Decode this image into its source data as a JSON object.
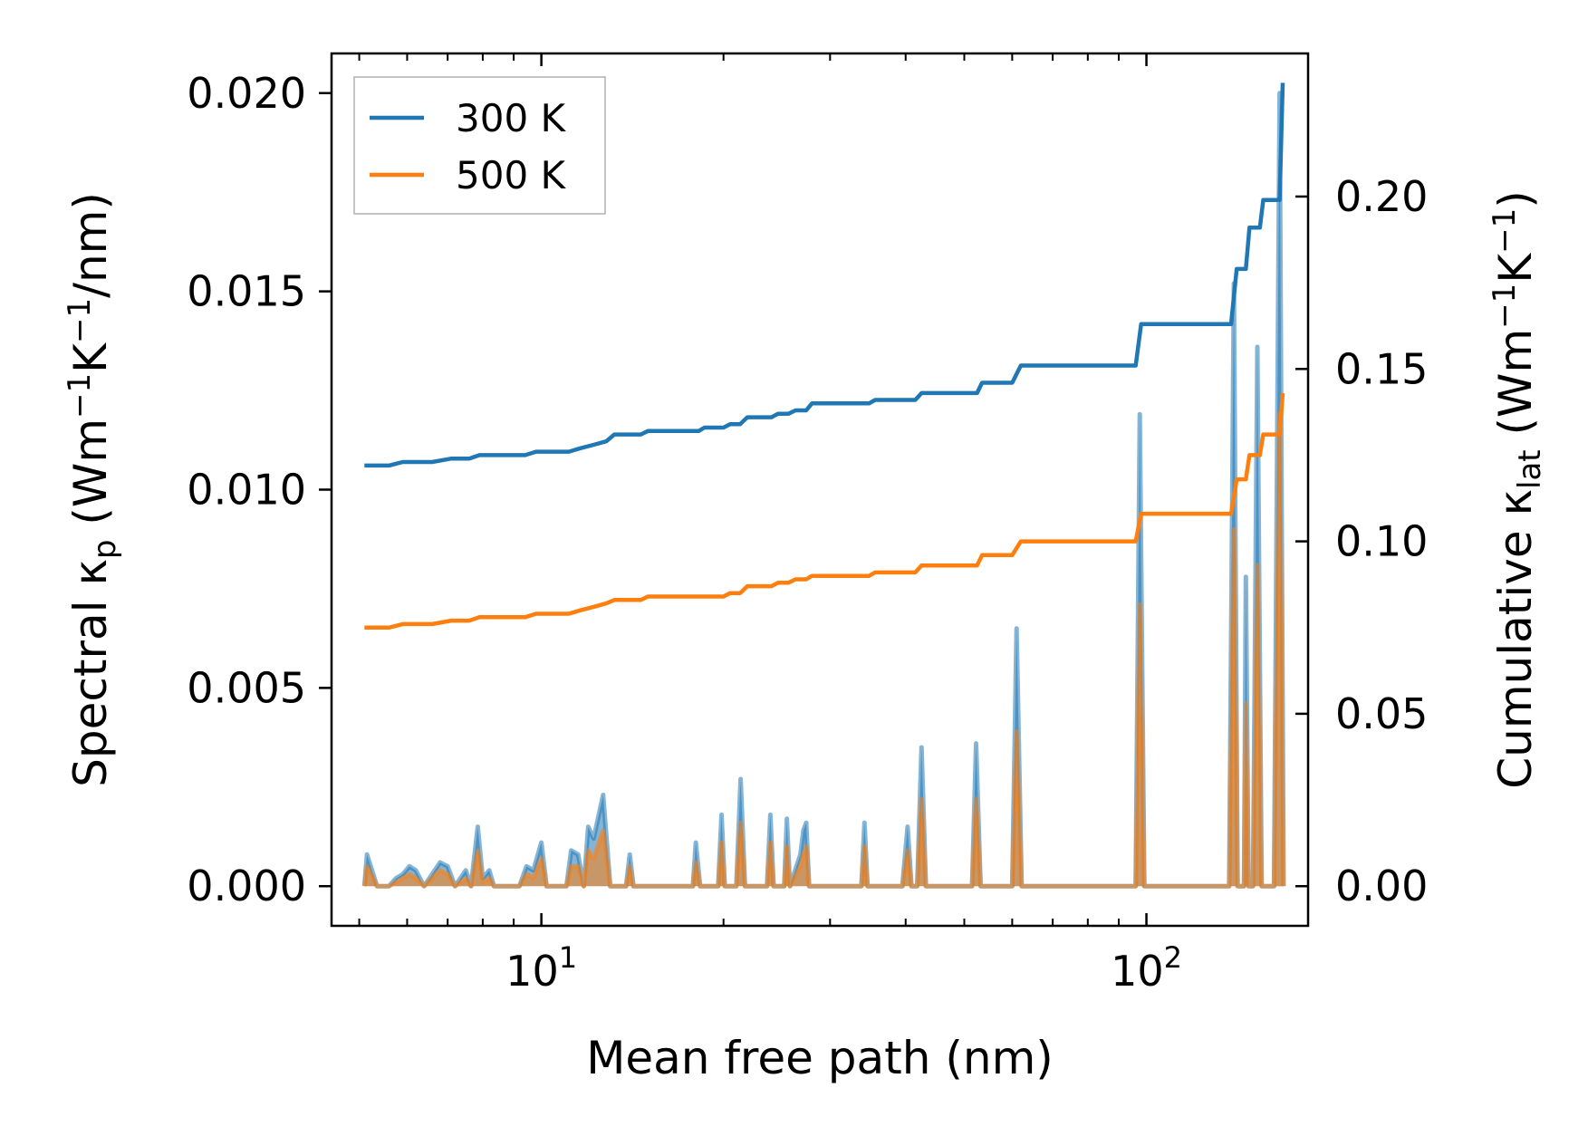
{
  "chart_data": {
    "type": "line",
    "xscale": "log",
    "xlim": [
      4.5,
      185
    ],
    "ylim_left": [
      -0.001,
      0.021
    ],
    "ylim_right": [
      -0.0115,
      0.2415
    ],
    "xlabel": "Mean free path (nm)",
    "ylabel_left": {
      "pre": "Spectral κ",
      "sub": "p",
      "open": " (Wm",
      "sup1": "−1",
      "mid": "K",
      "sup2": "−1",
      "close": "/nm)"
    },
    "ylabel_right": {
      "pre": "Cumulative κ",
      "sub": "lat",
      "open": " (Wm",
      "sup1": "−1",
      "mid": "K",
      "sup2": "−1",
      "close": ")"
    },
    "x_ticks": [
      {
        "base": "10",
        "exp": "1"
      },
      {
        "base": "10",
        "exp": "2"
      }
    ],
    "y_ticks_left": [
      "0.000",
      "0.005",
      "0.010",
      "0.015",
      "0.020"
    ],
    "y_ticks_right": [
      "0.00",
      "0.05",
      "0.10",
      "0.15",
      "0.20"
    ],
    "legend": {
      "position": "top-left",
      "entries": [
        "300 K",
        "500 K"
      ]
    },
    "colors": {
      "300 K": "#1f77b4",
      "500 K": "#ff7f0e"
    },
    "cumulative_series": [
      {
        "name": "300 K",
        "axis": "right",
        "points": [
          [
            5.1,
            0.122
          ],
          [
            5.6,
            0.122
          ],
          [
            5.9,
            0.123
          ],
          [
            6.6,
            0.123
          ],
          [
            7.1,
            0.124
          ],
          [
            7.6,
            0.124
          ],
          [
            7.9,
            0.125
          ],
          [
            9.4,
            0.125
          ],
          [
            9.8,
            0.126
          ],
          [
            11.1,
            0.126
          ],
          [
            11.6,
            0.127
          ],
          [
            12.2,
            0.128
          ],
          [
            12.8,
            0.129
          ],
          [
            13.2,
            0.131
          ],
          [
            14.6,
            0.131
          ],
          [
            15.0,
            0.132
          ],
          [
            18.2,
            0.132
          ],
          [
            18.6,
            0.133
          ],
          [
            20.0,
            0.133
          ],
          [
            20.5,
            0.134
          ],
          [
            21.3,
            0.134
          ],
          [
            21.9,
            0.136
          ],
          [
            24.0,
            0.136
          ],
          [
            24.6,
            0.137
          ],
          [
            25.6,
            0.137
          ],
          [
            26.3,
            0.138
          ],
          [
            27.4,
            0.138
          ],
          [
            28.0,
            0.14
          ],
          [
            34.8,
            0.14
          ],
          [
            35.6,
            0.141
          ],
          [
            41.5,
            0.141
          ],
          [
            42.5,
            0.143
          ],
          [
            48.5,
            0.143
          ],
          [
            52.5,
            0.143
          ],
          [
            53.5,
            0.146
          ],
          [
            60.0,
            0.146
          ],
          [
            62.0,
            0.151
          ],
          [
            96.0,
            0.151
          ],
          [
            98.0,
            0.163
          ],
          [
            138.0,
            0.163
          ],
          [
            141.0,
            0.179
          ],
          [
            146.0,
            0.179
          ],
          [
            148.0,
            0.191
          ],
          [
            154.0,
            0.191
          ],
          [
            156.0,
            0.199
          ],
          [
            166.0,
            0.199
          ],
          [
            168.0,
            0.233
          ]
        ]
      },
      {
        "name": "500 K",
        "axis": "right",
        "points": [
          [
            5.1,
            0.075
          ],
          [
            5.6,
            0.075
          ],
          [
            5.9,
            0.076
          ],
          [
            6.6,
            0.076
          ],
          [
            7.1,
            0.077
          ],
          [
            7.6,
            0.077
          ],
          [
            7.9,
            0.078
          ],
          [
            9.4,
            0.078
          ],
          [
            9.8,
            0.079
          ],
          [
            11.1,
            0.079
          ],
          [
            11.6,
            0.08
          ],
          [
            12.2,
            0.081
          ],
          [
            12.8,
            0.082
          ],
          [
            13.2,
            0.083
          ],
          [
            14.6,
            0.083
          ],
          [
            15.0,
            0.084
          ],
          [
            18.2,
            0.084
          ],
          [
            18.6,
            0.084
          ],
          [
            20.0,
            0.084
          ],
          [
            20.5,
            0.085
          ],
          [
            21.3,
            0.085
          ],
          [
            21.9,
            0.087
          ],
          [
            24.0,
            0.087
          ],
          [
            24.6,
            0.088
          ],
          [
            25.6,
            0.088
          ],
          [
            26.3,
            0.089
          ],
          [
            27.4,
            0.089
          ],
          [
            28.0,
            0.09
          ],
          [
            34.8,
            0.09
          ],
          [
            35.6,
            0.091
          ],
          [
            41.5,
            0.091
          ],
          [
            42.5,
            0.093
          ],
          [
            48.5,
            0.093
          ],
          [
            52.5,
            0.093
          ],
          [
            53.5,
            0.096
          ],
          [
            60.0,
            0.096
          ],
          [
            62.0,
            0.1
          ],
          [
            96.0,
            0.1
          ],
          [
            98.0,
            0.108
          ],
          [
            138.0,
            0.108
          ],
          [
            141.0,
            0.118
          ],
          [
            146.0,
            0.118
          ],
          [
            148.0,
            0.125
          ],
          [
            154.0,
            0.125
          ],
          [
            156.0,
            0.131
          ],
          [
            166.0,
            0.131
          ],
          [
            168.0,
            0.143
          ]
        ]
      }
    ],
    "spectral_series": [
      {
        "name": "300 K",
        "axis": "left",
        "points": [
          [
            5.1,
            0.0
          ],
          [
            5.15,
            0.0008
          ],
          [
            5.35,
            0.0
          ],
          [
            5.6,
            0.0
          ],
          [
            5.75,
            0.0002
          ],
          [
            5.9,
            0.0003
          ],
          [
            6.05,
            0.0005
          ],
          [
            6.2,
            0.0004
          ],
          [
            6.4,
            0.0
          ],
          [
            6.8,
            0.0006
          ],
          [
            7.0,
            0.0005
          ],
          [
            7.2,
            0.0
          ],
          [
            7.5,
            0.0004
          ],
          [
            7.65,
            0.0
          ],
          [
            7.85,
            0.0015
          ],
          [
            8.0,
            0.0002
          ],
          [
            8.2,
            0.0004
          ],
          [
            8.35,
            0.0
          ],
          [
            9.2,
            0.0
          ],
          [
            9.45,
            0.0005
          ],
          [
            9.7,
            0.0004
          ],
          [
            10.0,
            0.0011
          ],
          [
            10.2,
            0.0
          ],
          [
            11.0,
            0.0
          ],
          [
            11.2,
            0.0009
          ],
          [
            11.5,
            0.0008
          ],
          [
            11.75,
            0.0
          ],
          [
            11.95,
            0.0015
          ],
          [
            12.2,
            0.0012
          ],
          [
            12.65,
            0.0023
          ],
          [
            13.0,
            0.0
          ],
          [
            13.8,
            0.0
          ],
          [
            14.0,
            0.0008
          ],
          [
            14.2,
            0.0
          ],
          [
            17.8,
            0.0
          ],
          [
            18.0,
            0.0011
          ],
          [
            18.3,
            0.0
          ],
          [
            19.6,
            0.0
          ],
          [
            19.85,
            0.0018
          ],
          [
            20.1,
            0.0
          ],
          [
            21.0,
            0.0
          ],
          [
            21.35,
            0.0027
          ],
          [
            21.7,
            0.0
          ],
          [
            23.6,
            0.0
          ],
          [
            23.9,
            0.0018
          ],
          [
            24.2,
            0.0
          ],
          [
            25.2,
            0.0
          ],
          [
            25.45,
            0.0017
          ],
          [
            25.75,
            0.0
          ],
          [
            26.8,
            0.0008
          ],
          [
            27.1,
            0.0014
          ],
          [
            27.4,
            0.0016
          ],
          [
            27.7,
            0.0
          ],
          [
            33.8,
            0.0
          ],
          [
            34.2,
            0.0016
          ],
          [
            34.6,
            0.0
          ],
          [
            39.5,
            0.0
          ],
          [
            40.3,
            0.0015
          ],
          [
            40.9,
            0.0
          ],
          [
            41.8,
            0.0
          ],
          [
            42.5,
            0.0035
          ],
          [
            43.2,
            0.0
          ],
          [
            51.5,
            0.0
          ],
          [
            52.3,
            0.0036
          ],
          [
            53.2,
            0.0
          ],
          [
            60.0,
            0.0
          ],
          [
            61.0,
            0.0065
          ],
          [
            62.2,
            0.0
          ],
          [
            96.0,
            0.0
          ],
          [
            97.5,
            0.0119
          ],
          [
            99.2,
            0.0
          ],
          [
            137.0,
            0.0
          ],
          [
            139.5,
            0.0152
          ],
          [
            141.5,
            0.0
          ],
          [
            145.0,
            0.0
          ],
          [
            146.0,
            0.0078
          ],
          [
            147.5,
            0.0
          ],
          [
            150.0,
            0.0
          ],
          [
            152.5,
            0.0136
          ],
          [
            155.0,
            0.0
          ],
          [
            162.5,
            0.0
          ],
          [
            166.0,
            0.02
          ],
          [
            168.5,
            0.0
          ]
        ]
      },
      {
        "name": "500 K",
        "axis": "left",
        "points": [
          [
            5.1,
            0.0
          ],
          [
            5.15,
            0.0005
          ],
          [
            5.35,
            0.0
          ],
          [
            5.6,
            0.0
          ],
          [
            5.75,
            0.0001
          ],
          [
            5.9,
            0.0002
          ],
          [
            6.05,
            0.0003
          ],
          [
            6.2,
            0.0002
          ],
          [
            6.4,
            0.0
          ],
          [
            6.8,
            0.0004
          ],
          [
            7.0,
            0.0003
          ],
          [
            7.2,
            0.0
          ],
          [
            7.5,
            0.0002
          ],
          [
            7.65,
            0.0
          ],
          [
            7.85,
            0.0009
          ],
          [
            8.0,
            0.0001
          ],
          [
            8.2,
            0.0002
          ],
          [
            8.35,
            0.0
          ],
          [
            9.2,
            0.0
          ],
          [
            9.45,
            0.0003
          ],
          [
            9.7,
            0.0002
          ],
          [
            10.0,
            0.0007
          ],
          [
            10.2,
            0.0
          ],
          [
            11.0,
            0.0
          ],
          [
            11.2,
            0.0005
          ],
          [
            11.5,
            0.0005
          ],
          [
            11.75,
            0.0
          ],
          [
            11.95,
            0.0009
          ],
          [
            12.2,
            0.0007
          ],
          [
            12.65,
            0.0014
          ],
          [
            13.0,
            0.0
          ],
          [
            13.8,
            0.0
          ],
          [
            14.0,
            0.0005
          ],
          [
            14.2,
            0.0
          ],
          [
            17.8,
            0.0
          ],
          [
            18.0,
            0.0006
          ],
          [
            18.3,
            0.0
          ],
          [
            19.6,
            0.0
          ],
          [
            19.85,
            0.0011
          ],
          [
            20.1,
            0.0
          ],
          [
            21.0,
            0.0
          ],
          [
            21.35,
            0.0016
          ],
          [
            21.7,
            0.0
          ],
          [
            23.6,
            0.0
          ],
          [
            23.9,
            0.0011
          ],
          [
            24.2,
            0.0
          ],
          [
            25.2,
            0.0
          ],
          [
            25.45,
            0.001
          ],
          [
            25.75,
            0.0
          ],
          [
            26.8,
            0.0005
          ],
          [
            27.1,
            0.0008
          ],
          [
            27.4,
            0.001
          ],
          [
            27.7,
            0.0
          ],
          [
            33.8,
            0.0
          ],
          [
            34.2,
            0.001
          ],
          [
            34.6,
            0.0
          ],
          [
            39.5,
            0.0
          ],
          [
            40.3,
            0.0009
          ],
          [
            40.9,
            0.0
          ],
          [
            41.8,
            0.0
          ],
          [
            42.5,
            0.0022
          ],
          [
            43.2,
            0.0
          ],
          [
            51.5,
            0.0
          ],
          [
            52.3,
            0.0022
          ],
          [
            53.2,
            0.0
          ],
          [
            60.0,
            0.0
          ],
          [
            61.0,
            0.0039
          ],
          [
            62.2,
            0.0
          ],
          [
            96.0,
            0.0
          ],
          [
            97.5,
            0.0071
          ],
          [
            99.2,
            0.0
          ],
          [
            137.0,
            0.0
          ],
          [
            139.5,
            0.009
          ],
          [
            141.5,
            0.0
          ],
          [
            145.0,
            0.0
          ],
          [
            146.0,
            0.0046
          ],
          [
            147.5,
            0.0
          ],
          [
            150.0,
            0.0
          ],
          [
            152.5,
            0.0081
          ],
          [
            155.0,
            0.0
          ],
          [
            162.5,
            0.0
          ],
          [
            166.0,
            0.0119
          ],
          [
            168.5,
            0.0
          ]
        ]
      }
    ]
  }
}
